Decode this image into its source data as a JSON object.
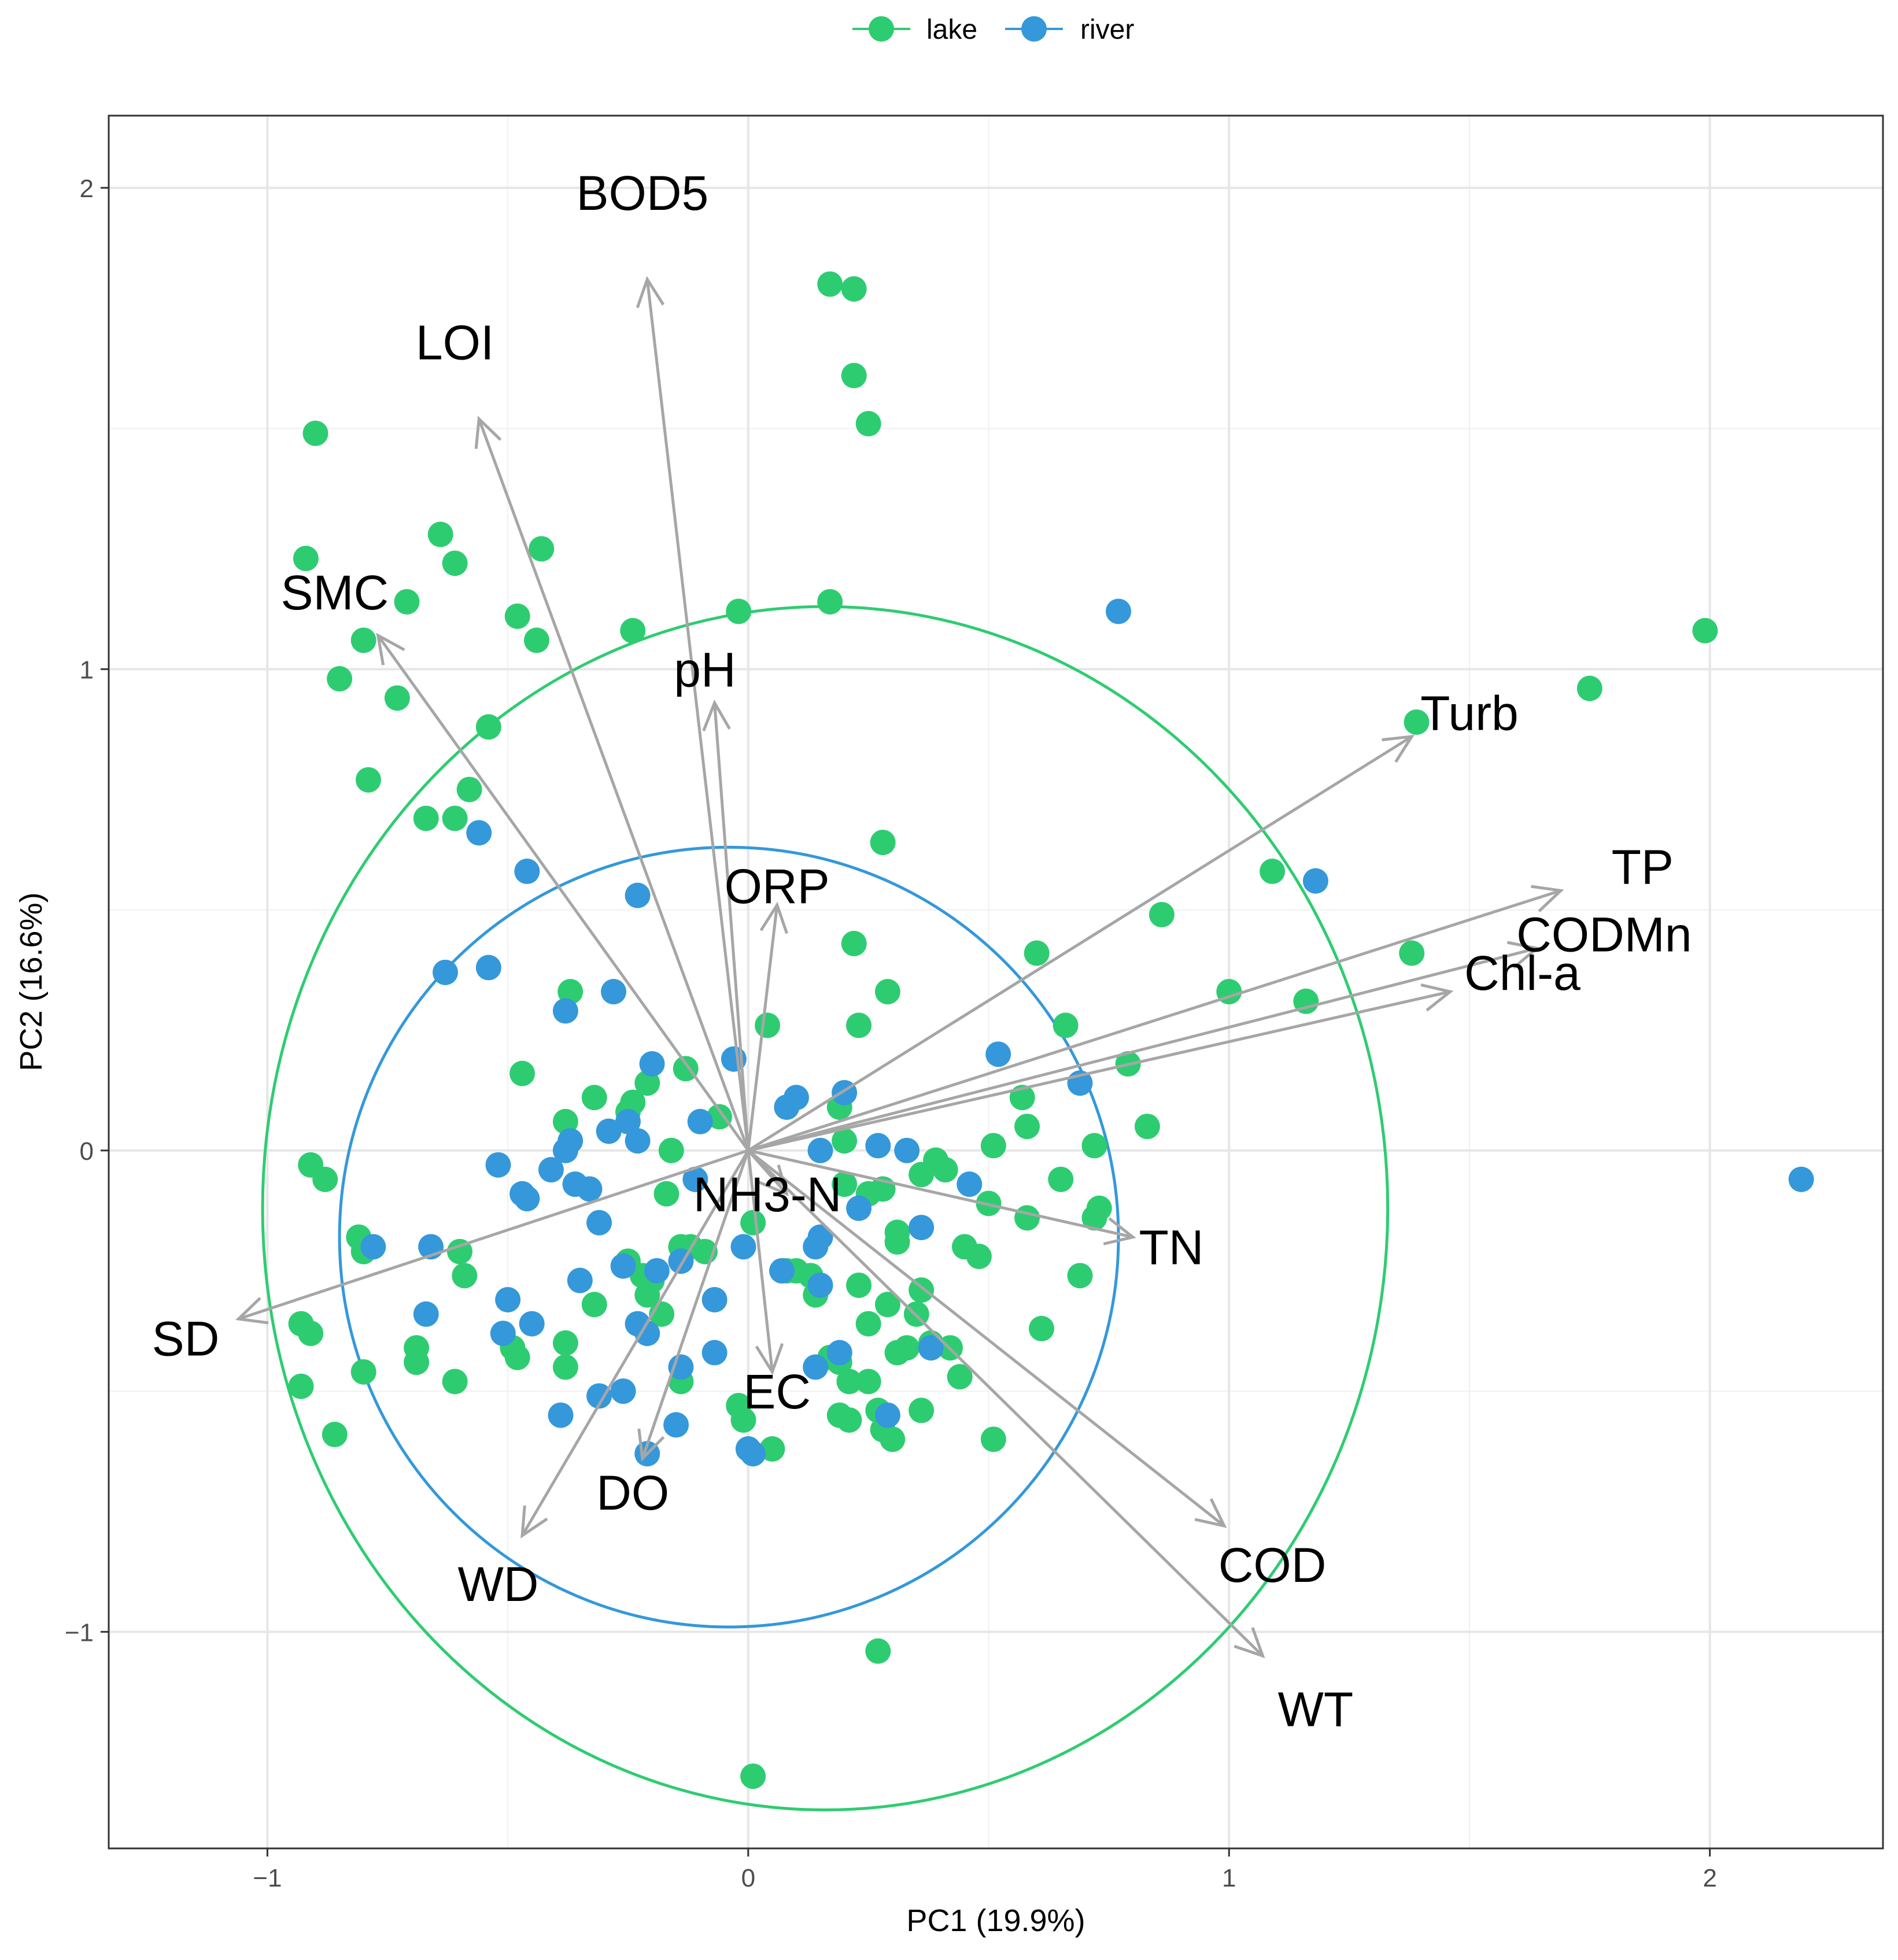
{
  "chart_data": {
    "type": "scatter",
    "subtype": "pca-biplot",
    "xlabel": "PC1 (19.9%)",
    "ylabel": "PC2 (16.6%)",
    "xlim": [
      -1.33,
      2.36
    ],
    "ylim": [
      -1.45,
      2.15
    ],
    "x_ticks": [
      -1,
      0,
      1,
      2
    ],
    "y_ticks": [
      -1,
      0,
      1,
      2
    ],
    "x_tick_labels": [
      "−1",
      "0",
      "1",
      "2"
    ],
    "y_tick_labels": [
      "−1",
      "0",
      "1",
      "2"
    ],
    "grid": true,
    "legend": {
      "position": "top",
      "entries": [
        {
          "name": "lake",
          "color": "#2ecc71"
        },
        {
          "name": "river",
          "color": "#3498db"
        }
      ]
    },
    "ellipses": [
      {
        "group": "lake",
        "color": "#2ecc71",
        "cx": 0.16,
        "cy": -0.12,
        "rx": 1.17,
        "ry": 1.25
      },
      {
        "group": "river",
        "color": "#3498db",
        "cx": -0.04,
        "cy": -0.18,
        "rx": 0.81,
        "ry": 0.81
      }
    ],
    "vectors": [
      {
        "name": "BOD5",
        "x": -0.21,
        "y": 1.81,
        "lx": -0.22,
        "ly": 1.99
      },
      {
        "name": "LOI",
        "x": -0.56,
        "y": 1.52,
        "lx": -0.61,
        "ly": 1.68
      },
      {
        "name": "SMC",
        "x": -0.77,
        "y": 1.07,
        "lx": -0.86,
        "ly": 1.16
      },
      {
        "name": "pH",
        "x": -0.07,
        "y": 0.93,
        "lx": -0.09,
        "ly": 1.0
      },
      {
        "name": "ORP",
        "x": 0.06,
        "y": 0.51,
        "lx": 0.06,
        "ly": 0.55
      },
      {
        "name": "Turb",
        "x": 1.38,
        "y": 0.86,
        "lx": 1.5,
        "ly": 0.91
      },
      {
        "name": "TP",
        "x": 1.69,
        "y": 0.54,
        "lx": 1.86,
        "ly": 0.59
      },
      {
        "name": "CODMn",
        "x": 1.64,
        "y": 0.42,
        "lx": 1.78,
        "ly": 0.45
      },
      {
        "name": "Chl-a",
        "x": 1.46,
        "y": 0.33,
        "lx": 1.61,
        "ly": 0.37
      },
      {
        "name": "TN",
        "x": 0.8,
        "y": -0.18,
        "lx": 0.88,
        "ly": -0.2
      },
      {
        "name": "NH3-N",
        "x": 0.08,
        "y": -0.09,
        "lx": 0.04,
        "ly": -0.09
      },
      {
        "name": "SD",
        "x": -1.06,
        "y": -0.35,
        "lx": -1.17,
        "ly": -0.39
      },
      {
        "name": "EC",
        "x": 0.05,
        "y": -0.46,
        "lx": 0.06,
        "ly": -0.5
      },
      {
        "name": "DO",
        "x": -0.22,
        "y": -0.64,
        "lx": -0.24,
        "ly": -0.71
      },
      {
        "name": "WD",
        "x": -0.47,
        "y": -0.8,
        "lx": -0.52,
        "ly": -0.9
      },
      {
        "name": "COD",
        "x": 0.99,
        "y": -0.78,
        "lx": 1.09,
        "ly": -0.86
      },
      {
        "name": "WT",
        "x": 1.07,
        "y": -1.05,
        "lx": 1.18,
        "ly": -1.16
      }
    ],
    "series": [
      {
        "name": "lake",
        "color": "#2ecc71",
        "points": [
          [
            0.17,
            1.8
          ],
          [
            0.22,
            1.79
          ],
          [
            0.22,
            1.61
          ],
          [
            0.25,
            1.51
          ],
          [
            -0.9,
            1.49
          ],
          [
            -0.64,
            1.28
          ],
          [
            -0.61,
            1.22
          ],
          [
            -0.43,
            1.25
          ],
          [
            -0.92,
            1.23
          ],
          [
            -0.71,
            1.14
          ],
          [
            -0.48,
            1.11
          ],
          [
            -0.44,
            1.06
          ],
          [
            -0.24,
            1.08
          ],
          [
            -0.02,
            1.12
          ],
          [
            0.17,
            1.14
          ],
          [
            -0.8,
            1.06
          ],
          [
            -0.85,
            0.98
          ],
          [
            -0.73,
            0.94
          ],
          [
            -0.54,
            0.88
          ],
          [
            -0.79,
            0.77
          ],
          [
            -0.58,
            0.75
          ],
          [
            -0.67,
            0.69
          ],
          [
            -0.61,
            0.69
          ],
          [
            0.28,
            0.64
          ],
          [
            1.09,
            0.58
          ],
          [
            1.75,
            0.96
          ],
          [
            1.39,
            0.89
          ],
          [
            1.99,
            1.08
          ],
          [
            0.86,
            0.49
          ],
          [
            0.6,
            0.41
          ],
          [
            1.38,
            0.41
          ],
          [
            1.0,
            0.33
          ],
          [
            1.16,
            0.31
          ],
          [
            0.22,
            0.43
          ],
          [
            0.29,
            0.33
          ],
          [
            0.23,
            0.26
          ],
          [
            0.66,
            0.26
          ],
          [
            0.79,
            0.18
          ],
          [
            0.57,
            0.11
          ],
          [
            0.58,
            0.05
          ],
          [
            0.83,
            0.05
          ],
          [
            0.72,
            0.01
          ],
          [
            0.51,
            0.01
          ],
          [
            0.65,
            -0.06
          ],
          [
            0.73,
            -0.12
          ],
          [
            0.72,
            -0.14
          ],
          [
            0.58,
            -0.14
          ],
          [
            0.5,
            -0.11
          ],
          [
            0.39,
            -0.02
          ],
          [
            0.41,
            -0.04
          ],
          [
            0.36,
            -0.05
          ],
          [
            0.28,
            -0.08
          ],
          [
            0.25,
            -0.09
          ],
          [
            0.2,
            -0.07
          ],
          [
            0.19,
            0.09
          ],
          [
            0.2,
            0.02
          ],
          [
            -0.37,
            0.33
          ],
          [
            -0.47,
            0.16
          ],
          [
            -0.32,
            0.11
          ],
          [
            -0.21,
            0.14
          ],
          [
            -0.13,
            0.17
          ],
          [
            -0.38,
            0.06
          ],
          [
            -0.16,
            0.0
          ],
          [
            -0.06,
            0.07
          ],
          [
            -0.25,
            0.08
          ],
          [
            -0.24,
            0.1
          ],
          [
            -0.17,
            -0.09
          ],
          [
            0.04,
            0.26
          ],
          [
            -0.91,
            -0.03
          ],
          [
            -0.88,
            -0.06
          ],
          [
            -0.81,
            -0.18
          ],
          [
            -0.8,
            -0.21
          ],
          [
            -0.6,
            -0.21
          ],
          [
            -0.59,
            -0.26
          ],
          [
            -0.93,
            -0.36
          ],
          [
            -0.91,
            -0.38
          ],
          [
            -0.93,
            -0.49
          ],
          [
            -0.8,
            -0.46
          ],
          [
            -0.86,
            -0.59
          ],
          [
            -0.69,
            -0.41
          ],
          [
            -0.69,
            -0.44
          ],
          [
            -0.61,
            -0.48
          ],
          [
            -0.49,
            -0.41
          ],
          [
            -0.48,
            -0.43
          ],
          [
            -0.38,
            -0.4
          ],
          [
            -0.38,
            -0.45
          ],
          [
            -0.32,
            -0.32
          ],
          [
            -0.25,
            -0.23
          ],
          [
            -0.22,
            -0.26
          ],
          [
            -0.2,
            -0.27
          ],
          [
            -0.21,
            -0.3
          ],
          [
            -0.18,
            -0.34
          ],
          [
            -0.14,
            -0.2
          ],
          [
            -0.12,
            -0.2
          ],
          [
            -0.14,
            -0.48
          ],
          [
            -0.09,
            -0.21
          ],
          [
            -0.02,
            -0.53
          ],
          [
            -0.01,
            -0.56
          ],
          [
            0.01,
            -0.15
          ],
          [
            0.05,
            -0.62
          ],
          [
            0.08,
            -0.25
          ],
          [
            0.1,
            -0.25
          ],
          [
            0.13,
            -0.26
          ],
          [
            0.14,
            -0.3
          ],
          [
            0.17,
            -0.43
          ],
          [
            0.19,
            -0.44
          ],
          [
            0.21,
            -0.48
          ],
          [
            0.19,
            -0.55
          ],
          [
            0.21,
            -0.56
          ],
          [
            0.23,
            -0.28
          ],
          [
            0.25,
            -0.36
          ],
          [
            0.25,
            -0.48
          ],
          [
            0.27,
            -0.54
          ],
          [
            0.28,
            -0.58
          ],
          [
            0.29,
            -0.32
          ],
          [
            0.3,
            -0.6
          ],
          [
            0.31,
            -0.42
          ],
          [
            0.31,
            -0.17
          ],
          [
            0.31,
            -0.19
          ],
          [
            0.33,
            -0.41
          ],
          [
            0.35,
            -0.34
          ],
          [
            0.36,
            -0.29
          ],
          [
            0.38,
            -0.4
          ],
          [
            0.36,
            -0.54
          ],
          [
            0.42,
            -0.41
          ],
          [
            0.44,
            -0.47
          ],
          [
            0.45,
            -0.2
          ],
          [
            0.48,
            -0.22
          ],
          [
            0.51,
            -0.6
          ],
          [
            0.61,
            -0.37
          ],
          [
            0.69,
            -0.26
          ],
          [
            0.27,
            -1.04
          ],
          [
            0.01,
            -1.3
          ]
        ]
      },
      {
        "name": "river",
        "color": "#3498db",
        "points": [
          [
            0.77,
            1.12
          ],
          [
            1.18,
            0.56
          ],
          [
            2.19,
            -0.06
          ],
          [
            -0.56,
            0.66
          ],
          [
            -0.46,
            0.58
          ],
          [
            -0.23,
            0.53
          ],
          [
            -0.63,
            0.37
          ],
          [
            -0.54,
            0.38
          ],
          [
            -0.38,
            0.29
          ],
          [
            -0.28,
            0.33
          ],
          [
            -0.2,
            0.18
          ],
          [
            -0.03,
            0.19
          ],
          [
            0.08,
            0.09
          ],
          [
            0.1,
            0.11
          ],
          [
            0.2,
            0.12
          ],
          [
            0.52,
            0.2
          ],
          [
            0.69,
            0.14
          ],
          [
            -0.38,
            0.0
          ],
          [
            -0.37,
            0.02
          ],
          [
            -0.29,
            0.04
          ],
          [
            -0.25,
            0.06
          ],
          [
            -0.23,
            0.02
          ],
          [
            -0.1,
            0.06
          ],
          [
            0.15,
            0.0
          ],
          [
            0.27,
            0.01
          ],
          [
            0.33,
            0.0
          ],
          [
            0.46,
            -0.07
          ],
          [
            -0.52,
            -0.03
          ],
          [
            -0.41,
            -0.04
          ],
          [
            -0.36,
            -0.07
          ],
          [
            -0.33,
            -0.08
          ],
          [
            -0.47,
            -0.09
          ],
          [
            -0.46,
            -0.1
          ],
          [
            -0.11,
            -0.06
          ],
          [
            0.23,
            -0.12
          ],
          [
            0.36,
            -0.16
          ],
          [
            -0.78,
            -0.2
          ],
          [
            -0.66,
            -0.2
          ],
          [
            -0.31,
            -0.15
          ],
          [
            -0.26,
            -0.24
          ],
          [
            -0.19,
            -0.25
          ],
          [
            -0.14,
            -0.23
          ],
          [
            -0.07,
            -0.31
          ],
          [
            -0.01,
            -0.2
          ],
          [
            0.07,
            -0.25
          ],
          [
            0.14,
            -0.2
          ],
          [
            0.15,
            -0.18
          ],
          [
            0.15,
            -0.28
          ],
          [
            -0.67,
            -0.34
          ],
          [
            -0.5,
            -0.31
          ],
          [
            -0.45,
            -0.36
          ],
          [
            -0.51,
            -0.38
          ],
          [
            -0.35,
            -0.27
          ],
          [
            -0.23,
            -0.36
          ],
          [
            -0.21,
            -0.38
          ],
          [
            -0.07,
            -0.42
          ],
          [
            0.14,
            -0.45
          ],
          [
            0.19,
            -0.42
          ],
          [
            0.38,
            -0.41
          ],
          [
            -0.39,
            -0.55
          ],
          [
            -0.31,
            -0.51
          ],
          [
            -0.26,
            -0.5
          ],
          [
            -0.14,
            -0.45
          ],
          [
            -0.15,
            -0.57
          ],
          [
            -0.21,
            -0.63
          ],
          [
            0.0,
            -0.62
          ],
          [
            0.01,
            -0.63
          ],
          [
            0.29,
            -0.55
          ]
        ]
      }
    ]
  }
}
